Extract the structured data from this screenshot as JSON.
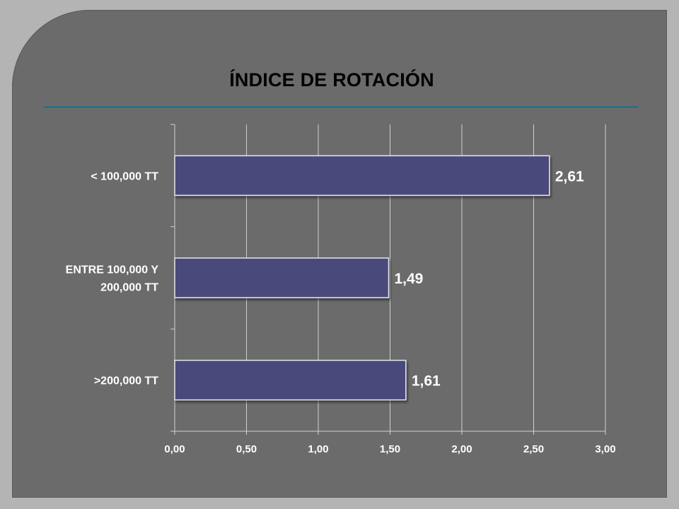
{
  "title": "ÍNDICE DE ROTACIÓN",
  "colors": {
    "bar": "#484a7c",
    "background": "#6b6b6b",
    "frame": "#b4b4b4",
    "rule": "#2e7f9a",
    "text": "#ffffff"
  },
  "chart_data": {
    "type": "bar",
    "orientation": "horizontal",
    "categories": [
      [
        "< 100,000 TT"
      ],
      [
        "ENTRE 100,000 Y",
        "200,000 TT"
      ],
      [
        ">200,000 TT"
      ]
    ],
    "values": [
      2.61,
      1.49,
      1.61
    ],
    "data_labels": [
      "2,61",
      "1,49",
      "1,61"
    ],
    "xlim": [
      0,
      3
    ],
    "ticks": [
      0,
      0.5,
      1,
      1.5,
      2,
      2.5,
      3
    ],
    "tick_labels": [
      "0,00",
      "0,50",
      "1,00",
      "1,50",
      "2,00",
      "2,50",
      "3,00"
    ],
    "grid": true,
    "legend": "none"
  }
}
